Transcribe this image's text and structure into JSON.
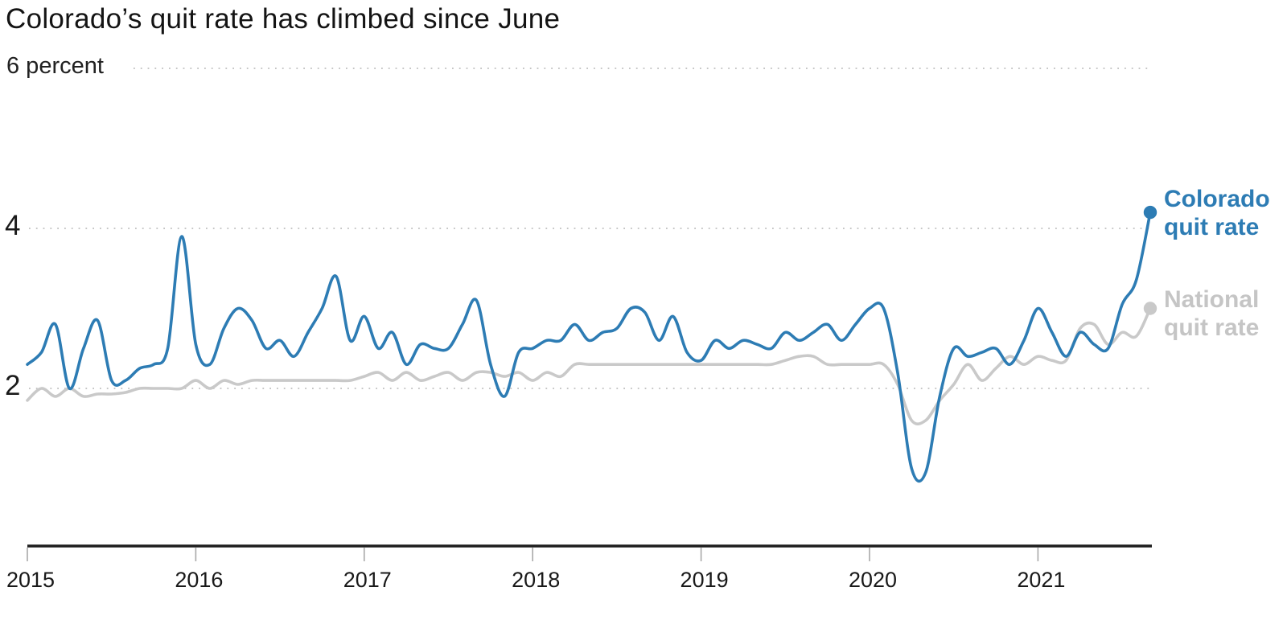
{
  "title": "Colorado’s quit rate has climbed since June",
  "y_axis": {
    "top_label": "6 percent",
    "tick_4": "4",
    "tick_2": "2"
  },
  "series_labels": {
    "colorado": {
      "line1": "Colorado",
      "line2": "quit rate"
    },
    "national": {
      "line1": "National",
      "line2": "quit rate"
    }
  },
  "colors": {
    "colorado_line": "#2d7cb4",
    "national_line": "#c9c9c9",
    "national_label": "#c5c5c5",
    "axis": "#1d1d1d",
    "grid_dots": "#bfbfbf",
    "tick_mark": "#a9a9a9",
    "tick_text": "#191919"
  },
  "chart_data": {
    "type": "line",
    "title": "Colorado’s quit rate has climbed since June",
    "ylabel": "percent",
    "x": {
      "start": "2015-01",
      "end": "2021-09",
      "frequency": "monthly",
      "points": 81
    },
    "x_tick_labels": [
      "2015",
      "2016",
      "2017",
      "2018",
      "2019",
      "2020",
      "2021"
    ],
    "y_gridlines": [
      2,
      4,
      6
    ],
    "ylim": [
      0,
      6.3
    ],
    "grid": "dotted-horizontal",
    "legend_position": "end-of-line-labels",
    "series": [
      {
        "name": "Colorado quit rate",
        "end_value": 4.2,
        "values": [
          2.3,
          2.45,
          2.8,
          2.0,
          2.5,
          2.85,
          2.1,
          2.1,
          2.25,
          2.3,
          2.5,
          3.9,
          2.55,
          2.3,
          2.75,
          3.0,
          2.85,
          2.5,
          2.6,
          2.4,
          2.7,
          3.0,
          3.4,
          2.6,
          2.9,
          2.5,
          2.7,
          2.3,
          2.55,
          2.5,
          2.5,
          2.8,
          3.1,
          2.3,
          1.9,
          2.45,
          2.5,
          2.6,
          2.6,
          2.8,
          2.6,
          2.7,
          2.75,
          3.0,
          2.95,
          2.6,
          2.9,
          2.45,
          2.35,
          2.6,
          2.5,
          2.6,
          2.55,
          2.5,
          2.7,
          2.6,
          2.7,
          2.8,
          2.6,
          2.8,
          3.0,
          3.0,
          2.2,
          1.0,
          0.95,
          1.9,
          2.5,
          2.4,
          2.45,
          2.5,
          2.3,
          2.6,
          3.0,
          2.7,
          2.4,
          2.7,
          2.55,
          2.5,
          3.05,
          3.35,
          4.2
        ]
      },
      {
        "name": "National quit rate",
        "end_value": 3.0,
        "values": [
          1.85,
          2.0,
          1.9,
          2.0,
          1.9,
          1.93,
          1.93,
          1.95,
          2.0,
          2.0,
          2.0,
          2.0,
          2.1,
          2.0,
          2.1,
          2.05,
          2.1,
          2.1,
          2.1,
          2.1,
          2.1,
          2.1,
          2.1,
          2.1,
          2.15,
          2.2,
          2.1,
          2.2,
          2.1,
          2.15,
          2.2,
          2.1,
          2.2,
          2.2,
          2.15,
          2.2,
          2.1,
          2.2,
          2.15,
          2.3,
          2.3,
          2.3,
          2.3,
          2.3,
          2.3,
          2.3,
          2.3,
          2.3,
          2.3,
          2.3,
          2.3,
          2.3,
          2.3,
          2.3,
          2.35,
          2.4,
          2.4,
          2.3,
          2.3,
          2.3,
          2.3,
          2.3,
          2.05,
          1.6,
          1.6,
          1.85,
          2.05,
          2.3,
          2.1,
          2.25,
          2.4,
          2.3,
          2.4,
          2.35,
          2.35,
          2.75,
          2.8,
          2.55,
          2.7,
          2.65,
          3.0
        ]
      }
    ]
  }
}
